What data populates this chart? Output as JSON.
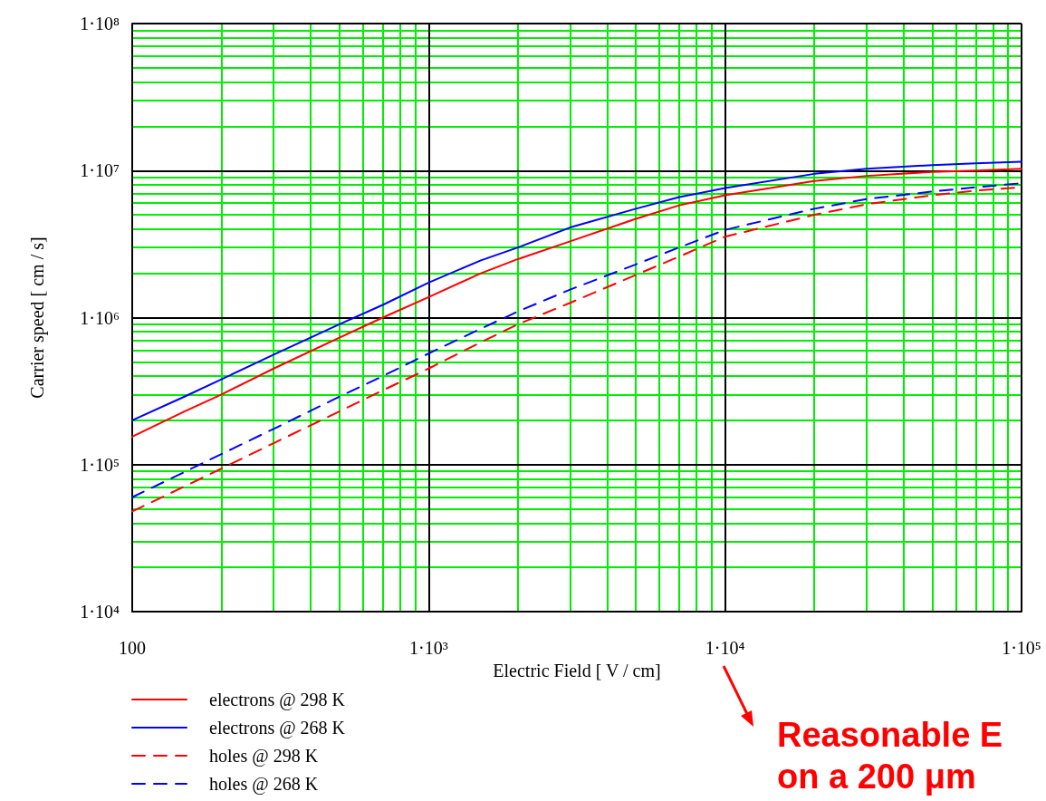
{
  "chart_data": {
    "type": "line",
    "xlabel": "Electric Field [ V / cm]",
    "ylabel": "Carrier speed [ cm / s]",
    "log": "xy",
    "grid": true,
    "legend": "bottom left",
    "marker": "none",
    "xlim": [
      100,
      100000
    ],
    "xticks": [
      100,
      {
        "value": 200,
        "label": null
      },
      {
        "value": 300,
        "label": null
      },
      {
        "value": 400,
        "label": null
      },
      {
        "value": 500,
        "label": null
      },
      {
        "value": 600,
        "label": null
      },
      {
        "value": 700,
        "label": null
      },
      {
        "value": 800,
        "label": null
      },
      {
        "value": 900,
        "label": null
      },
      {
        "value": 1000,
        "label": "1·10³"
      },
      {
        "value": 2000,
        "label": null
      },
      {
        "value": 3000,
        "label": null
      },
      {
        "value": 4000,
        "label": null
      },
      {
        "value": 5000,
        "label": null
      },
      {
        "value": 6000,
        "label": null
      },
      {
        "value": 7000,
        "label": null
      },
      {
        "value": 8000,
        "label": null
      },
      {
        "value": 9000,
        "label": null
      },
      {
        "value": 10000,
        "label": "1·10⁴"
      },
      {
        "value": 20000,
        "label": null
      },
      {
        "value": 30000,
        "label": null
      },
      {
        "value": 40000,
        "label": null
      },
      {
        "value": 50000,
        "label": null
      },
      {
        "value": 60000,
        "label": null
      },
      {
        "value": 70000,
        "label": null
      },
      {
        "value": 80000,
        "label": null
      },
      {
        "value": 90000,
        "label": null
      },
      {
        "value": 100000,
        "label": "1·10⁵"
      }
    ],
    "ylim": [
      10000,
      100000000
    ],
    "yticks": [
      {
        "value": 10000,
        "label": "1·10⁴"
      },
      {
        "value": 20000,
        "label": null
      },
      {
        "value": 30000,
        "label": null
      },
      {
        "value": 40000,
        "label": null
      },
      {
        "value": 50000,
        "label": null
      },
      {
        "value": 60000,
        "label": null
      },
      {
        "value": 70000,
        "label": null
      },
      {
        "value": 80000,
        "label": null
      },
      {
        "value": 90000,
        "label": null
      },
      {
        "value": 100000,
        "label": "1·10⁵"
      },
      {
        "value": 200000,
        "label": null
      },
      {
        "value": 300000,
        "label": null
      },
      {
        "value": 400000,
        "label": null
      },
      {
        "value": 500000,
        "label": null
      },
      {
        "value": 600000,
        "label": null
      },
      {
        "value": 700000,
        "label": null
      },
      {
        "value": 800000,
        "label": null
      },
      {
        "value": 900000,
        "label": null
      },
      {
        "value": 1000000,
        "label": "1·10⁶"
      },
      {
        "value": 2000000,
        "label": null
      },
      {
        "value": 3000000,
        "label": null
      },
      {
        "value": 4000000,
        "label": null
      },
      {
        "value": 5000000,
        "label": null
      },
      {
        "value": 6000000,
        "label": null
      },
      {
        "value": 7000000,
        "label": null
      },
      {
        "value": 8000000,
        "label": null
      },
      {
        "value": 9000000,
        "label": null
      },
      {
        "value": 10000000,
        "label": "1·10⁷"
      },
      {
        "value": 20000000,
        "label": null
      },
      {
        "value": 30000000,
        "label": null
      },
      {
        "value": 40000000,
        "label": null
      },
      {
        "value": 50000000,
        "label": null
      },
      {
        "value": 60000000,
        "label": null
      },
      {
        "value": 70000000,
        "label": null
      },
      {
        "value": 80000000,
        "label": null
      },
      {
        "value": 90000000,
        "label": null
      },
      {
        "value": 100000000,
        "label": "1·10⁸"
      }
    ],
    "x": [
      100,
      150,
      200,
      300,
      500,
      700,
      1000,
      1500,
      2000,
      3000,
      5000,
      7000,
      10000,
      20000,
      30000,
      50000,
      70000,
      100000
    ],
    "series": [
      {
        "name": "electrons @ 298 K",
        "color": "#ff0000",
        "line_style": "solid",
        "values": [
          155000,
          230000,
          300000,
          450000,
          730000,
          1000000,
          1380000,
          2000000,
          2500000,
          3300000,
          4700000,
          5800000,
          6800000,
          8500000,
          9200000,
          9800000,
          10000000,
          10300000
        ]
      },
      {
        "name": "electrons @ 268 K",
        "color": "#0000ff",
        "line_style": "solid",
        "values": [
          200000,
          290000,
          380000,
          560000,
          900000,
          1220000,
          1730000,
          2450000,
          3000000,
          4100000,
          5500000,
          6600000,
          7600000,
          9500000,
          10300000,
          10900000,
          11200000,
          11500000
        ]
      },
      {
        "name": "holes @ 298 K",
        "color": "#ff0000",
        "line_style": "dashed",
        "values": [
          48000,
          71000,
          94000,
          140000,
          230000,
          320000,
          450000,
          680000,
          900000,
          1260000,
          1950000,
          2600000,
          3550000,
          5000000,
          5900000,
          6800000,
          7300000,
          7700000
        ]
      },
      {
        "name": "holes @ 268 K",
        "color": "#0000ff",
        "line_style": "dashed",
        "values": [
          60000,
          89000,
          118000,
          175000,
          290000,
          400000,
          570000,
          840000,
          1100000,
          1550000,
          2300000,
          3000000,
          3950000,
          5500000,
          6400000,
          7200000,
          7700000,
          8200000
        ]
      }
    ],
    "annotations": [
      "Reasonable E\non a 200 μm"
    ]
  }
}
